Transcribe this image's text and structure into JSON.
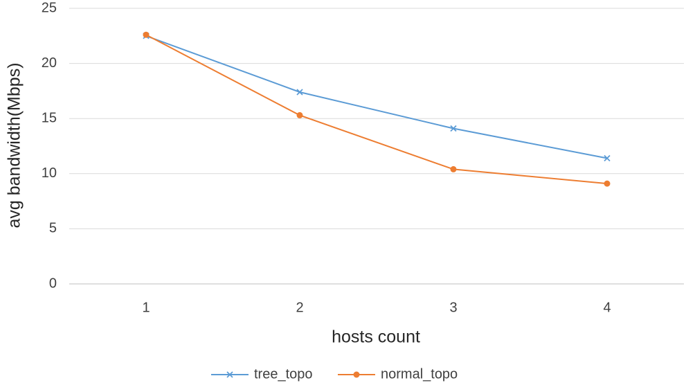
{
  "chart_data": {
    "type": "line",
    "title": "",
    "xlabel": "hosts count",
    "ylabel": "avg bandwidth(Mbps)",
    "categories": [
      "1",
      "2",
      "3",
      "4"
    ],
    "ylim": [
      0,
      25
    ],
    "yticks": [
      0,
      5,
      10,
      15,
      20,
      25
    ],
    "grid": true,
    "legend": "bottom",
    "series": [
      {
        "name": "tree_topo",
        "color": "#5b9bd5",
        "marker": "x",
        "values": [
          22.5,
          17.4,
          14.1,
          11.4
        ]
      },
      {
        "name": "normal_topo",
        "color": "#ed7d31",
        "marker": "circle",
        "values": [
          22.6,
          15.3,
          10.4,
          9.1
        ]
      }
    ]
  }
}
